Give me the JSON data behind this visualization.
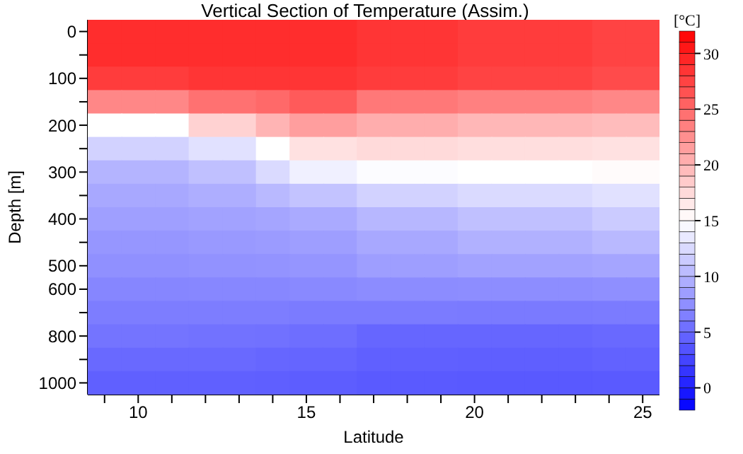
{
  "chart_data": {
    "type": "heatmap",
    "title": "Vertical Section of Temperature (Assim.)",
    "xlabel": "Latitude",
    "ylabel": "Depth [m]",
    "clabel": "[°C]",
    "categories": [
      null,
      "10",
      null,
      null,
      null,
      null,
      "15",
      null,
      null,
      null,
      null,
      "20",
      null,
      null,
      null,
      null,
      "25"
    ],
    "y_categories": [
      "0",
      null,
      "100",
      null,
      "200",
      null,
      "300",
      null,
      "400",
      null,
      "500",
      "600",
      null,
      "800",
      null,
      "1000"
    ],
    "clim": [
      -2,
      32
    ],
    "cticks": [
      0,
      5,
      10,
      15,
      20,
      25,
      30
    ],
    "cells": [
      [
        29,
        29,
        29,
        29,
        29,
        29,
        29,
        29,
        28.5,
        28.5,
        28.5,
        28,
        28,
        28,
        28,
        27.5,
        27.5
      ],
      [
        29,
        29,
        29,
        29,
        29,
        29,
        29,
        29,
        28.5,
        28.5,
        28.5,
        28,
        28,
        28,
        28,
        27.5,
        27.5
      ],
      [
        28,
        28,
        28,
        28.5,
        28.5,
        28.5,
        28.5,
        28.5,
        28,
        28,
        28,
        27.5,
        27.5,
        27.5,
        27.5,
        27,
        27
      ],
      [
        23,
        23,
        23,
        24.5,
        24.5,
        25,
        26,
        26,
        24,
        24,
        24,
        23.5,
        23.5,
        23.5,
        23.5,
        23,
        23
      ],
      [
        15,
        15,
        15,
        18,
        18,
        20,
        21.5,
        21.5,
        20.5,
        20.5,
        20.5,
        19.8,
        19.8,
        19.8,
        19.8,
        19.5,
        19.5
      ],
      [
        12,
        12,
        12,
        13,
        13,
        15,
        17,
        17,
        17.5,
        17.5,
        17.5,
        17.2,
        17.2,
        17.2,
        17.2,
        17,
        17
      ],
      [
        10,
        10,
        10,
        10.8,
        10.8,
        12.5,
        14,
        14,
        14.8,
        14.8,
        14.8,
        15,
        15,
        15,
        15,
        15.3,
        15.3
      ],
      [
        9.2,
        9.2,
        9.2,
        9.6,
        9.6,
        10.3,
        11,
        11,
        12,
        12,
        12,
        12.5,
        12.5,
        12.5,
        12.5,
        13,
        13
      ],
      [
        8.6,
        8.6,
        8.6,
        8.8,
        8.8,
        9,
        9.3,
        9.3,
        10.2,
        10.2,
        10.2,
        10.8,
        10.8,
        10.8,
        10.8,
        11.5,
        11.5
      ],
      [
        8,
        8,
        8,
        8.2,
        8.2,
        8.3,
        8.5,
        8.5,
        9.2,
        9.2,
        9.2,
        9.8,
        9.8,
        9.8,
        9.8,
        10.3,
        10.3
      ],
      [
        7.6,
        7.6,
        7.6,
        7.7,
        7.7,
        7.8,
        7.9,
        7.9,
        8.5,
        8.5,
        8.5,
        8.8,
        8.8,
        8.8,
        8.8,
        9,
        9
      ],
      [
        6.9,
        6.9,
        6.9,
        7,
        7,
        7,
        7.1,
        7.1,
        7.3,
        7.3,
        7.3,
        7.4,
        7.4,
        7.4,
        7.4,
        7.5,
        7.5
      ],
      [
        6.3,
        6.3,
        6.3,
        6.3,
        6.3,
        6.3,
        6.2,
        6.2,
        6.2,
        6.2,
        6.2,
        6.1,
        6.1,
        6.1,
        6.1,
        6.2,
        6.2
      ],
      [
        5.7,
        5.7,
        5.7,
        5.6,
        5.6,
        5.5,
        5.3,
        5.3,
        4.8,
        4.8,
        4.8,
        4.8,
        4.8,
        4.8,
        4.8,
        5,
        5
      ],
      [
        5,
        5,
        5,
        5,
        5,
        4.8,
        4.7,
        4.7,
        4.4,
        4.4,
        4.4,
        4.3,
        4.3,
        4.3,
        4.3,
        4.5,
        4.5
      ],
      [
        4.4,
        4.4,
        4.4,
        4.4,
        4.4,
        4.3,
        4.2,
        4.2,
        4,
        4,
        4,
        3.9,
        3.9,
        3.9,
        3.9,
        4,
        4
      ]
    ]
  }
}
